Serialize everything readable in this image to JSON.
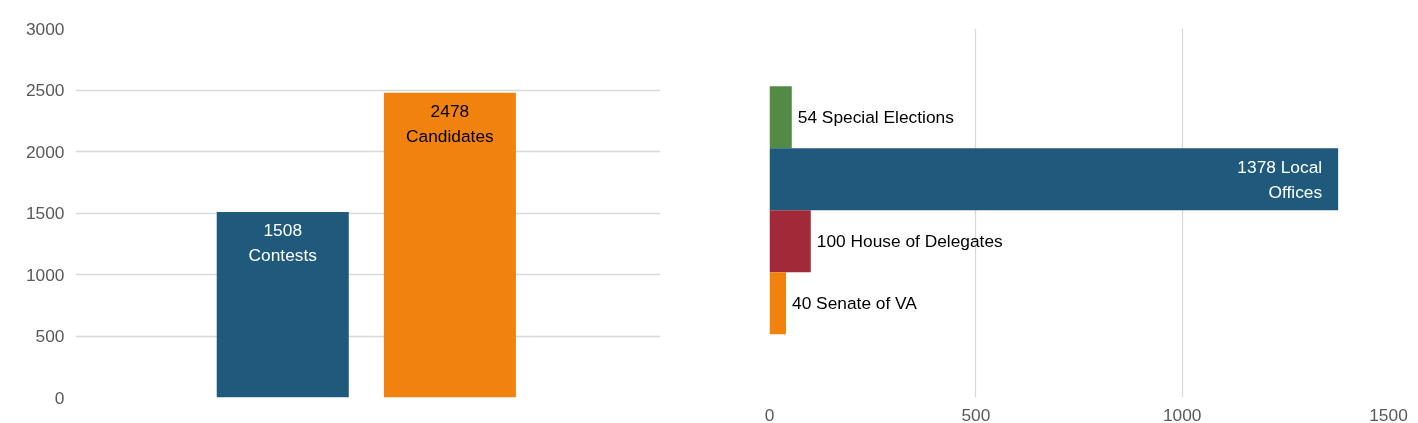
{
  "chart_data": [
    {
      "type": "bar",
      "categories": [
        null,
        null
      ],
      "values": [
        1508,
        2478
      ],
      "colors": [
        "#1f5a7c",
        "#f0820d"
      ],
      "value_labels": [
        "1508\nContests",
        "2478\nCandidates"
      ],
      "ylim": [
        0,
        3000
      ],
      "yticks": [
        0,
        500,
        1000,
        1500,
        2000,
        2500,
        3000
      ],
      "grid": "y",
      "tick_labels": "y"
    },
    {
      "type": "bar",
      "orientation": "horizontal",
      "categories": [
        null,
        null,
        null,
        null
      ],
      "values": [
        54,
        1378,
        100,
        40
      ],
      "colors": [
        "#538b46",
        "#1f5a7c",
        "#a02a38",
        "#f0820d"
      ],
      "value_labels": [
        "54 Special Elections",
        "1378 Local\nOffices",
        "100 House of Delegates",
        "40 Senate of VA"
      ],
      "xlim": [
        0,
        1500
      ],
      "xticks": [
        0,
        500,
        1000,
        1500
      ],
      "grid": "x",
      "tick_labels": "x"
    }
  ]
}
